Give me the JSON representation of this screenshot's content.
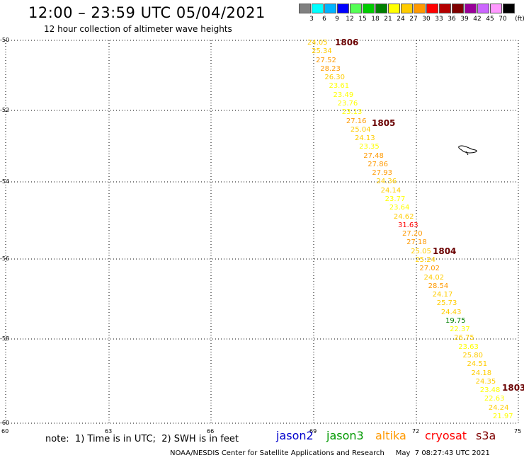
{
  "header": {
    "title": "12:00 – 23:59 UTC 05/04/2021",
    "subtitle": "12 hour collection of altimeter wave heights"
  },
  "legend": {
    "unit": "(ft)",
    "items": [
      {
        "label": "3",
        "color": "#808080"
      },
      {
        "label": "6",
        "color": "#00ffff"
      },
      {
        "label": "9",
        "color": "#00b4ff"
      },
      {
        "label": "12",
        "color": "#0000ff"
      },
      {
        "label": "15",
        "color": "#55ff55"
      },
      {
        "label": "18",
        "color": "#00cc00"
      },
      {
        "label": "21",
        "color": "#007f00"
      },
      {
        "label": "24",
        "color": "#ffff00"
      },
      {
        "label": "27",
        "color": "#ffcc00"
      },
      {
        "label": "30",
        "color": "#ff9900"
      },
      {
        "label": "33",
        "color": "#ff0000"
      },
      {
        "label": "36",
        "color": "#b40000"
      },
      {
        "label": "39",
        "color": "#7f0000"
      },
      {
        "label": "42",
        "color": "#990099"
      },
      {
        "label": "45",
        "color": "#cc66ff"
      },
      {
        "label": "70",
        "color": "#ff99ff"
      },
      {
        "label": "",
        "color": "#000000"
      }
    ]
  },
  "axes": {
    "x_ticks": [
      "60",
      "63",
      "66",
      "69",
      "72",
      "75"
    ],
    "y_ticks": [
      "-50",
      "-52",
      "-54",
      "-56",
      "-58",
      "-60"
    ]
  },
  "map": {
    "pass_labels": [
      "1806",
      "1805",
      "1804",
      "1803"
    ],
    "swh_values": [
      {
        "text": "24.05",
        "color": "#ffcc00"
      },
      {
        "text": "25.34",
        "color": "#ffcc00"
      },
      {
        "text": "27.52",
        "color": "#ff9900"
      },
      {
        "text": "28.23",
        "color": "#ff9900"
      },
      {
        "text": "26.30",
        "color": "#ffcc00"
      },
      {
        "text": "23.61",
        "color": "#ffff00"
      },
      {
        "text": "23.49",
        "color": "#ffff00"
      },
      {
        "text": "23.76",
        "color": "#ffff00"
      },
      {
        "text": "23.13",
        "color": "#ffff00"
      },
      {
        "text": "27.16",
        "color": "#ff9900"
      },
      {
        "text": "25.04",
        "color": "#ffcc00"
      },
      {
        "text": "24.13",
        "color": "#ffcc00"
      },
      {
        "text": "23.35",
        "color": "#ffff00"
      },
      {
        "text": "27.48",
        "color": "#ff9900"
      },
      {
        "text": "27.86",
        "color": "#ff9900"
      },
      {
        "text": "27.93",
        "color": "#ff9900"
      },
      {
        "text": "24.36",
        "color": "#ffcc00"
      },
      {
        "text": "24.14",
        "color": "#ffcc00"
      },
      {
        "text": "23.77",
        "color": "#ffff00"
      },
      {
        "text": "23.64",
        "color": "#ffff00"
      },
      {
        "text": "24.62",
        "color": "#ffcc00"
      },
      {
        "text": "31.63",
        "color": "#ff0000"
      },
      {
        "text": "27.20",
        "color": "#ff9900"
      },
      {
        "text": "27.18",
        "color": "#ff9900"
      },
      {
        "text": "25.05",
        "color": "#ffcc00"
      },
      {
        "text": "25.24",
        "color": "#ffcc00"
      },
      {
        "text": "27.02",
        "color": "#ff9900"
      },
      {
        "text": "24.02",
        "color": "#ffcc00"
      },
      {
        "text": "28.54",
        "color": "#ff9900"
      },
      {
        "text": "24.17",
        "color": "#ffcc00"
      },
      {
        "text": "25.73",
        "color": "#ffcc00"
      },
      {
        "text": "24.43",
        "color": "#ffcc00"
      },
      {
        "text": "19.75",
        "color": "#007f00"
      },
      {
        "text": "22.37",
        "color": "#ffff00"
      },
      {
        "text": "26.75",
        "color": "#ffcc00"
      },
      {
        "text": "23.63",
        "color": "#ffff00"
      },
      {
        "text": "25.80",
        "color": "#ffcc00"
      },
      {
        "text": "24.51",
        "color": "#ffcc00"
      },
      {
        "text": "24.18",
        "color": "#ffcc00"
      },
      {
        "text": "24.35",
        "color": "#ffcc00"
      },
      {
        "text": "23.48",
        "color": "#ffff00"
      },
      {
        "text": "22.63",
        "color": "#ffff00"
      },
      {
        "text": "24.24",
        "color": "#ffcc00"
      },
      {
        "text": "21.97",
        "color": "#ffff00"
      }
    ]
  },
  "note": "note:  1) Time is in UTC;  2) SWH is in feet",
  "satellites": [
    {
      "name": "jason2",
      "color": "#0000cc"
    },
    {
      "name": "jason3",
      "color": "#009900"
    },
    {
      "name": "altika",
      "color": "#ff9900"
    },
    {
      "name": "cryosat",
      "color": "#ff0000"
    },
    {
      "name": "s3a",
      "color": "#7f0000"
    }
  ],
  "footer": "NOAA/NESDIS Center for Satellite Applications and Research     May  7 08:27:43 UTC 2021"
}
